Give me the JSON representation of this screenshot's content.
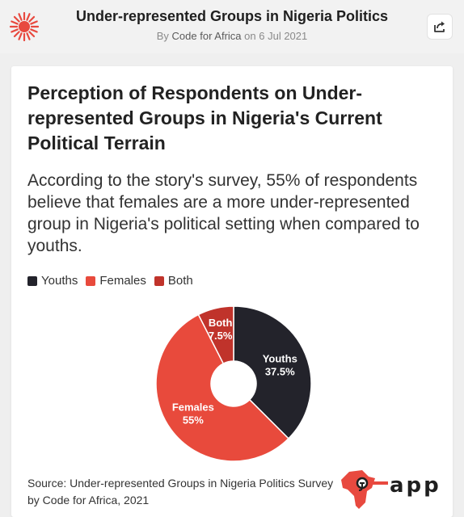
{
  "header": {
    "title": "Under-represented Groups in Nigeria Politics",
    "by_prefix": "By",
    "author": "Code for Africa",
    "date_prefix": "on",
    "date": "6 Jul 2021",
    "logo_icon": "sun-burst-icon",
    "share_icon": "share-icon"
  },
  "card": {
    "source": "Source: Under-represented Groups in Nigeria Politics Survey by Code for Africa, 2021",
    "brand": "app",
    "brand_icon": "africa-map-icon"
  },
  "colors": {
    "accent": "#e8493f",
    "youths": "#23232b",
    "females": "#e84a3c",
    "both": "#c0332b"
  },
  "chart_data": {
    "type": "pie",
    "title": "Perception of Respondents on Under-represented Groups in Nigeria's Current Political Terrain",
    "subtitle": "According to the story's survey, 55% of respondents believe that females are a more under-represented group in Nigeria's political setting when compared to youths.",
    "legend_position": "top-left",
    "donut": true,
    "slices": [
      {
        "name": "Youths",
        "value": 37.5,
        "label": "37.5%",
        "color": "#23232b"
      },
      {
        "name": "Females",
        "value": 55,
        "label": "55%",
        "color": "#e84a3c"
      },
      {
        "name": "Both",
        "value": 7.5,
        "label": "7.5%",
        "color": "#c0332b"
      }
    ]
  }
}
